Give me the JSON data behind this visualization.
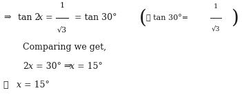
{
  "bg_color": "#ffffff",
  "text_color": "#1a1a1a",
  "figsize": [
    3.51,
    1.38
  ],
  "dpi": 100,
  "line1": {
    "arrow": "⇒",
    "main": " tan 2",
    "x1": "x",
    "eq1": " = ",
    "frac_num": "1",
    "frac_den": "√3",
    "eq2": " = tan 30°",
    "box_text": "∵ tan 30°= ",
    "box_frac_num": "1",
    "box_frac_den": "√3"
  },
  "line2": "Comparing we get,",
  "line3_a": "2",
  "line3_x": "x",
  "line3_b": " = 30° ⇒ ",
  "line3_x2": "x",
  "line3_c": " = 15°",
  "line4_arrow": "∴",
  "line4_x": "x",
  "line4_b": " = 15°",
  "font_size_main": 9,
  "font_size_box": 8
}
